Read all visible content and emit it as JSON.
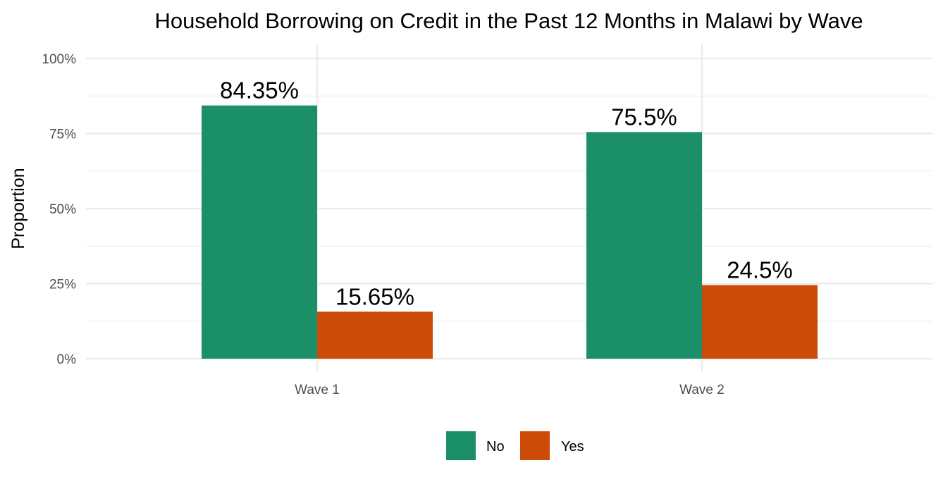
{
  "chart_data": {
    "type": "bar",
    "title": "Household Borrowing on Credit in the Past 12 Months in Malawi by Wave",
    "xlabel": "",
    "ylabel": "Proportion",
    "categories": [
      "Wave 1",
      "Wave 2"
    ],
    "series": [
      {
        "name": "No",
        "values": [
          84.35,
          75.5
        ],
        "labels": [
          "84.35%",
          "75.5%"
        ],
        "color": "#1b9068"
      },
      {
        "name": "Yes",
        "values": [
          15.65,
          24.5
        ],
        "labels": [
          "15.65%",
          "24.5%"
        ],
        "color": "#cc4b09"
      }
    ],
    "ylim": [
      0,
      100
    ],
    "yticks": [
      0,
      25,
      50,
      75,
      100
    ],
    "ytick_labels": [
      "0%",
      "25%",
      "50%",
      "75%",
      "100%"
    ],
    "grid": true,
    "legend": "bottom",
    "colors": {
      "grid": "#ebebeb"
    }
  }
}
